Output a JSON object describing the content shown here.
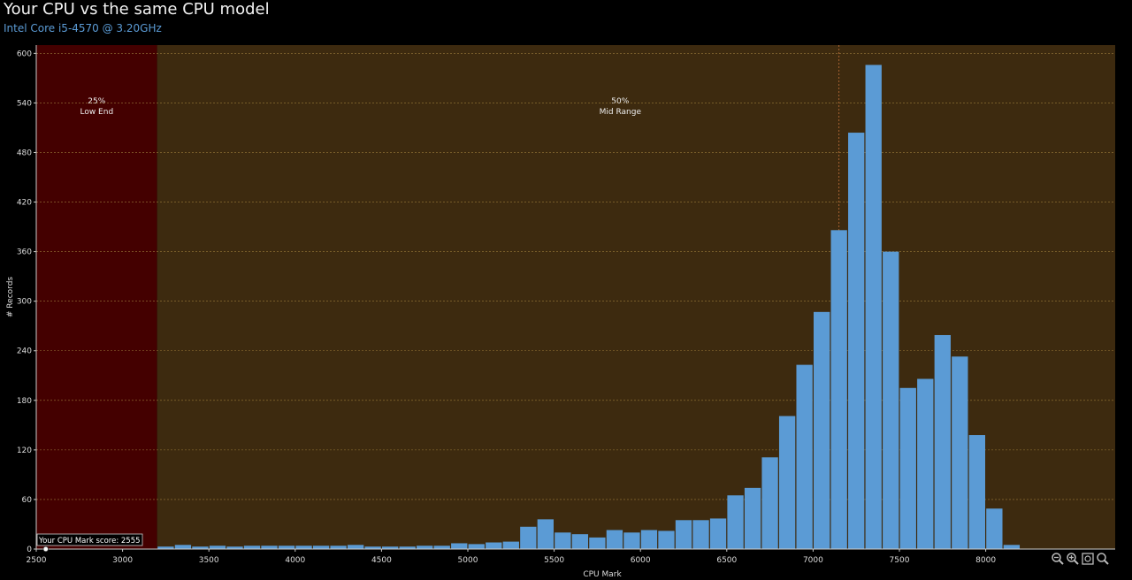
{
  "header": {
    "title": "Your CPU vs the same CPU model",
    "subtitle": "Intel Core i5-4570 @ 3.20GHz"
  },
  "toolbar": {
    "icons": [
      "zoom-out-icon",
      "zoom-in-icon",
      "zoom-fit-icon",
      "zoom-reset-icon"
    ]
  },
  "chart_data": {
    "type": "bar",
    "xlabel": "CPU Mark",
    "ylabel": "# Records",
    "xlim": [
      2500,
      8750
    ],
    "ylim": [
      0,
      610
    ],
    "xticks": [
      2500,
      3000,
      3500,
      4000,
      4500,
      5000,
      5500,
      6000,
      6500,
      7000,
      7500,
      8000
    ],
    "yticks": [
      0,
      60,
      120,
      180,
      240,
      300,
      360,
      420,
      480,
      540,
      600
    ],
    "grid": true,
    "bin_width": 100,
    "regions": [
      {
        "label_pct": "25%",
        "label_name": "Low End",
        "from": 2500,
        "to": 3200,
        "color": "#440000"
      },
      {
        "label_pct": "50%",
        "label_name": "Mid Range",
        "from": 3200,
        "to": 8750,
        "color": "#3d2a0f"
      }
    ],
    "marker_line": 7150,
    "your_score_label": "Your CPU Mark score: 2555",
    "your_score": 2555,
    "bar_color": "#5b9bd5",
    "x": [
      3250,
      3350,
      3450,
      3550,
      3650,
      3750,
      3850,
      3950,
      4050,
      4150,
      4250,
      4350,
      4450,
      4550,
      4650,
      4750,
      4850,
      4950,
      5050,
      5150,
      5250,
      5350,
      5450,
      5550,
      5650,
      5750,
      5850,
      5950,
      6050,
      6150,
      6250,
      6350,
      6450,
      6550,
      6650,
      6750,
      6850,
      6950,
      7050,
      7150,
      7250,
      7350,
      7450,
      7550,
      7650,
      7750,
      7850,
      7950,
      8050,
      8150
    ],
    "values": [
      3,
      5,
      3,
      4,
      3,
      4,
      4,
      4,
      4,
      4,
      4,
      5,
      3,
      3,
      3,
      4,
      4,
      7,
      6,
      8,
      9,
      27,
      36,
      20,
      18,
      14,
      23,
      20,
      23,
      22,
      35,
      35,
      37,
      65,
      74,
      111,
      161,
      223,
      287,
      386,
      504,
      586,
      360,
      195,
      206,
      259,
      233,
      138,
      49,
      5
    ]
  }
}
